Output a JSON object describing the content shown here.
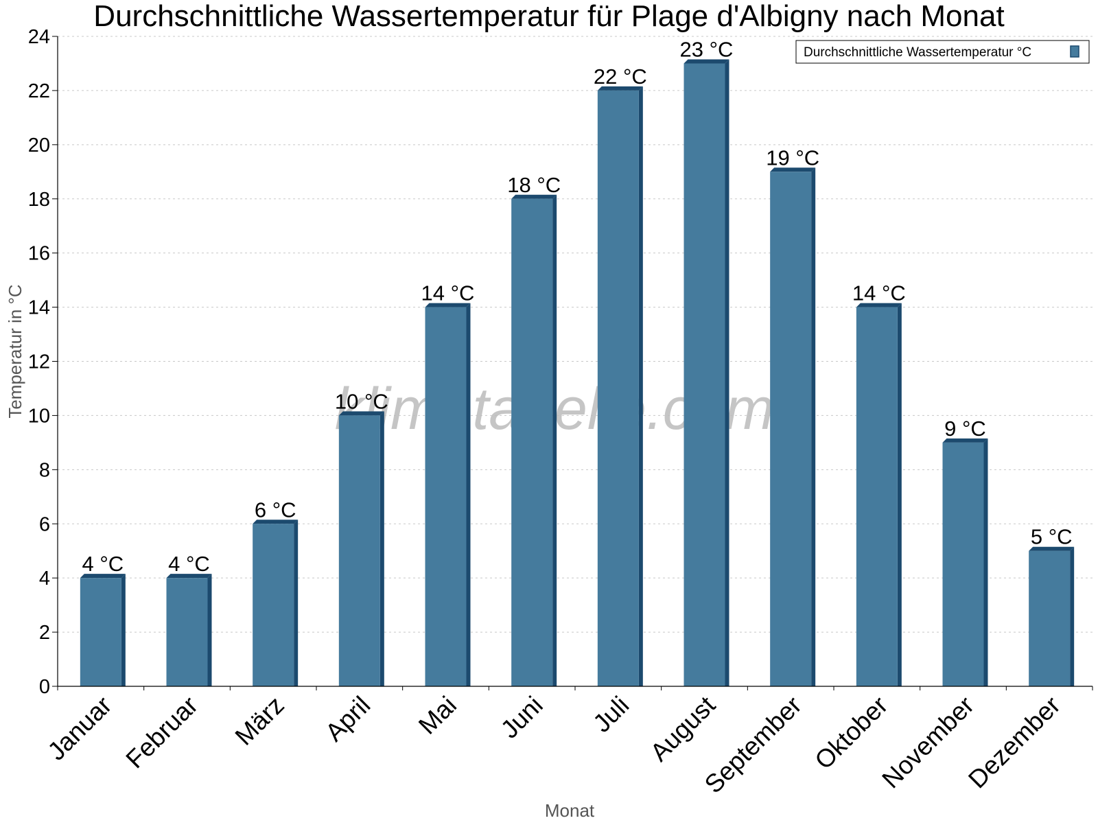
{
  "chart_data": {
    "type": "bar",
    "title": "Durchschnittliche Wassertemperatur für Plage d'Albigny nach Monat",
    "xlabel": "Monat",
    "ylabel": "Temperatur in °C",
    "categories": [
      "Januar",
      "Februar",
      "März",
      "April",
      "Mai",
      "Juni",
      "Juli",
      "August",
      "September",
      "Oktober",
      "November",
      "Dezember"
    ],
    "series": [
      {
        "name": "Durchschnittliche Wassertemperatur °C",
        "values": [
          4,
          4,
          6,
          10,
          14,
          18,
          22,
          23,
          19,
          14,
          9,
          5
        ],
        "data_labels": [
          "4 °C",
          "4 °C",
          "6 °C",
          "10 °C",
          "14 °C",
          "18 °C",
          "22 °C",
          "23 °C",
          "19 °C",
          "14 °C",
          "9 °C",
          "5 °C"
        ],
        "color": "#457b9d"
      }
    ],
    "ylim": [
      0,
      24
    ],
    "yticks": [
      0,
      2,
      4,
      6,
      8,
      10,
      12,
      14,
      16,
      18,
      20,
      22,
      24
    ],
    "grid": true,
    "legend_position": "top-right",
    "watermark": "klimatabelle.com"
  },
  "colors": {
    "bar": "#457b9d",
    "bar_dark": "#1c4a6e",
    "grid": "#c8c8c8",
    "axis_title": "#555555",
    "watermark": "#bbbbbb"
  }
}
